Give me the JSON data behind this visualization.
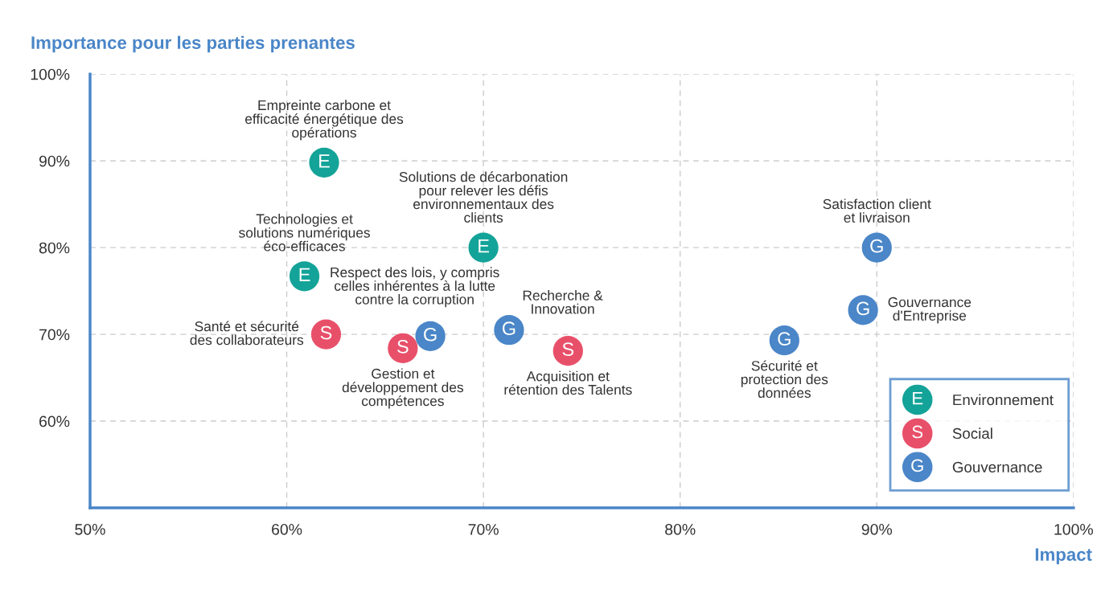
{
  "chart_data": {
    "type": "scatter",
    "xlabel": "Impact",
    "ylabel": "Importance pour les parties prenantes",
    "xlim": [
      50,
      100
    ],
    "ylim": [
      50,
      100
    ],
    "xticks": [
      {
        "value": 50,
        "label": "50%"
      },
      {
        "value": 60,
        "label": "60%"
      },
      {
        "value": 70,
        "label": "70%"
      },
      {
        "value": 80,
        "label": "80%"
      },
      {
        "value": 90,
        "label": "90%"
      },
      {
        "value": 100,
        "label": "100%"
      }
    ],
    "yticks": [
      {
        "value": 60,
        "label": "60%"
      },
      {
        "value": 70,
        "label": "70%"
      },
      {
        "value": 80,
        "label": "80%"
      },
      {
        "value": 90,
        "label": "90%"
      },
      {
        "value": 100,
        "label": "100%"
      }
    ],
    "grid": true,
    "legend": "bottom right",
    "marker": "circle",
    "series": [
      {
        "name": "Environnement",
        "color": "#14a398",
        "x": [
          61.9,
          60.9,
          70
        ],
        "values": [
          89.8,
          76.7,
          80
        ],
        "value_labels": [
          "E",
          "E",
          "E"
        ]
      },
      {
        "name": "Social",
        "color": "#e8506a",
        "x": [
          62,
          65.9,
          74.3
        ],
        "values": [
          70,
          68.4,
          68.1
        ],
        "value_labels": [
          "S",
          "S",
          "S"
        ]
      },
      {
        "name": "Gouvernance",
        "color": "#4a86c8",
        "x": [
          67.3,
          71.3,
          85.3,
          90,
          89.3
        ],
        "values": [
          69.8,
          70.5,
          69.3,
          80,
          72.8
        ],
        "value_labels": [
          "G",
          "G",
          "G",
          "G",
          "G"
        ]
      }
    ],
    "annotations": [
      {
        "text": "Empreinte carbone et\nefficacité énergétique des\nopérations",
        "x": 61.9,
        "y": 89.8
      },
      {
        "text": "Technologies et\nsolutions numériques\néco-efficaces",
        "x": 60.9,
        "y": 76.7
      },
      {
        "text": "Solutions de décarbonation\npour relever les défis\nenvironnementaux des\nclients",
        "x": 70,
        "y": 80
      },
      {
        "text": "Respect des lois, y compris\ncelles inhérentes à la lutte\ncontre la corruption",
        "x": 67.3,
        "y": 69.8
      },
      {
        "text": "Santé et sécurité\ndes collaborateurs",
        "x": 62,
        "y": 70
      },
      {
        "text": "Gestion et\ndéveloppement des\ncompétences",
        "x": 65.9,
        "y": 68.4
      },
      {
        "text": "Recherche &\nInnovation",
        "x": 71.3,
        "y": 70.5
      },
      {
        "text": "Acquisition et\nrétention des Talents",
        "x": 74.3,
        "y": 68.1
      },
      {
        "text": "Sécurité et\nprotection des\ndonnées",
        "x": 85.3,
        "y": 69.3
      },
      {
        "text": "Satisfaction client\net livraison",
        "x": 90,
        "y": 80
      },
      {
        "text": "Gouvernance\nd'Entreprise",
        "x": 89.3,
        "y": 72.8
      }
    ]
  }
}
